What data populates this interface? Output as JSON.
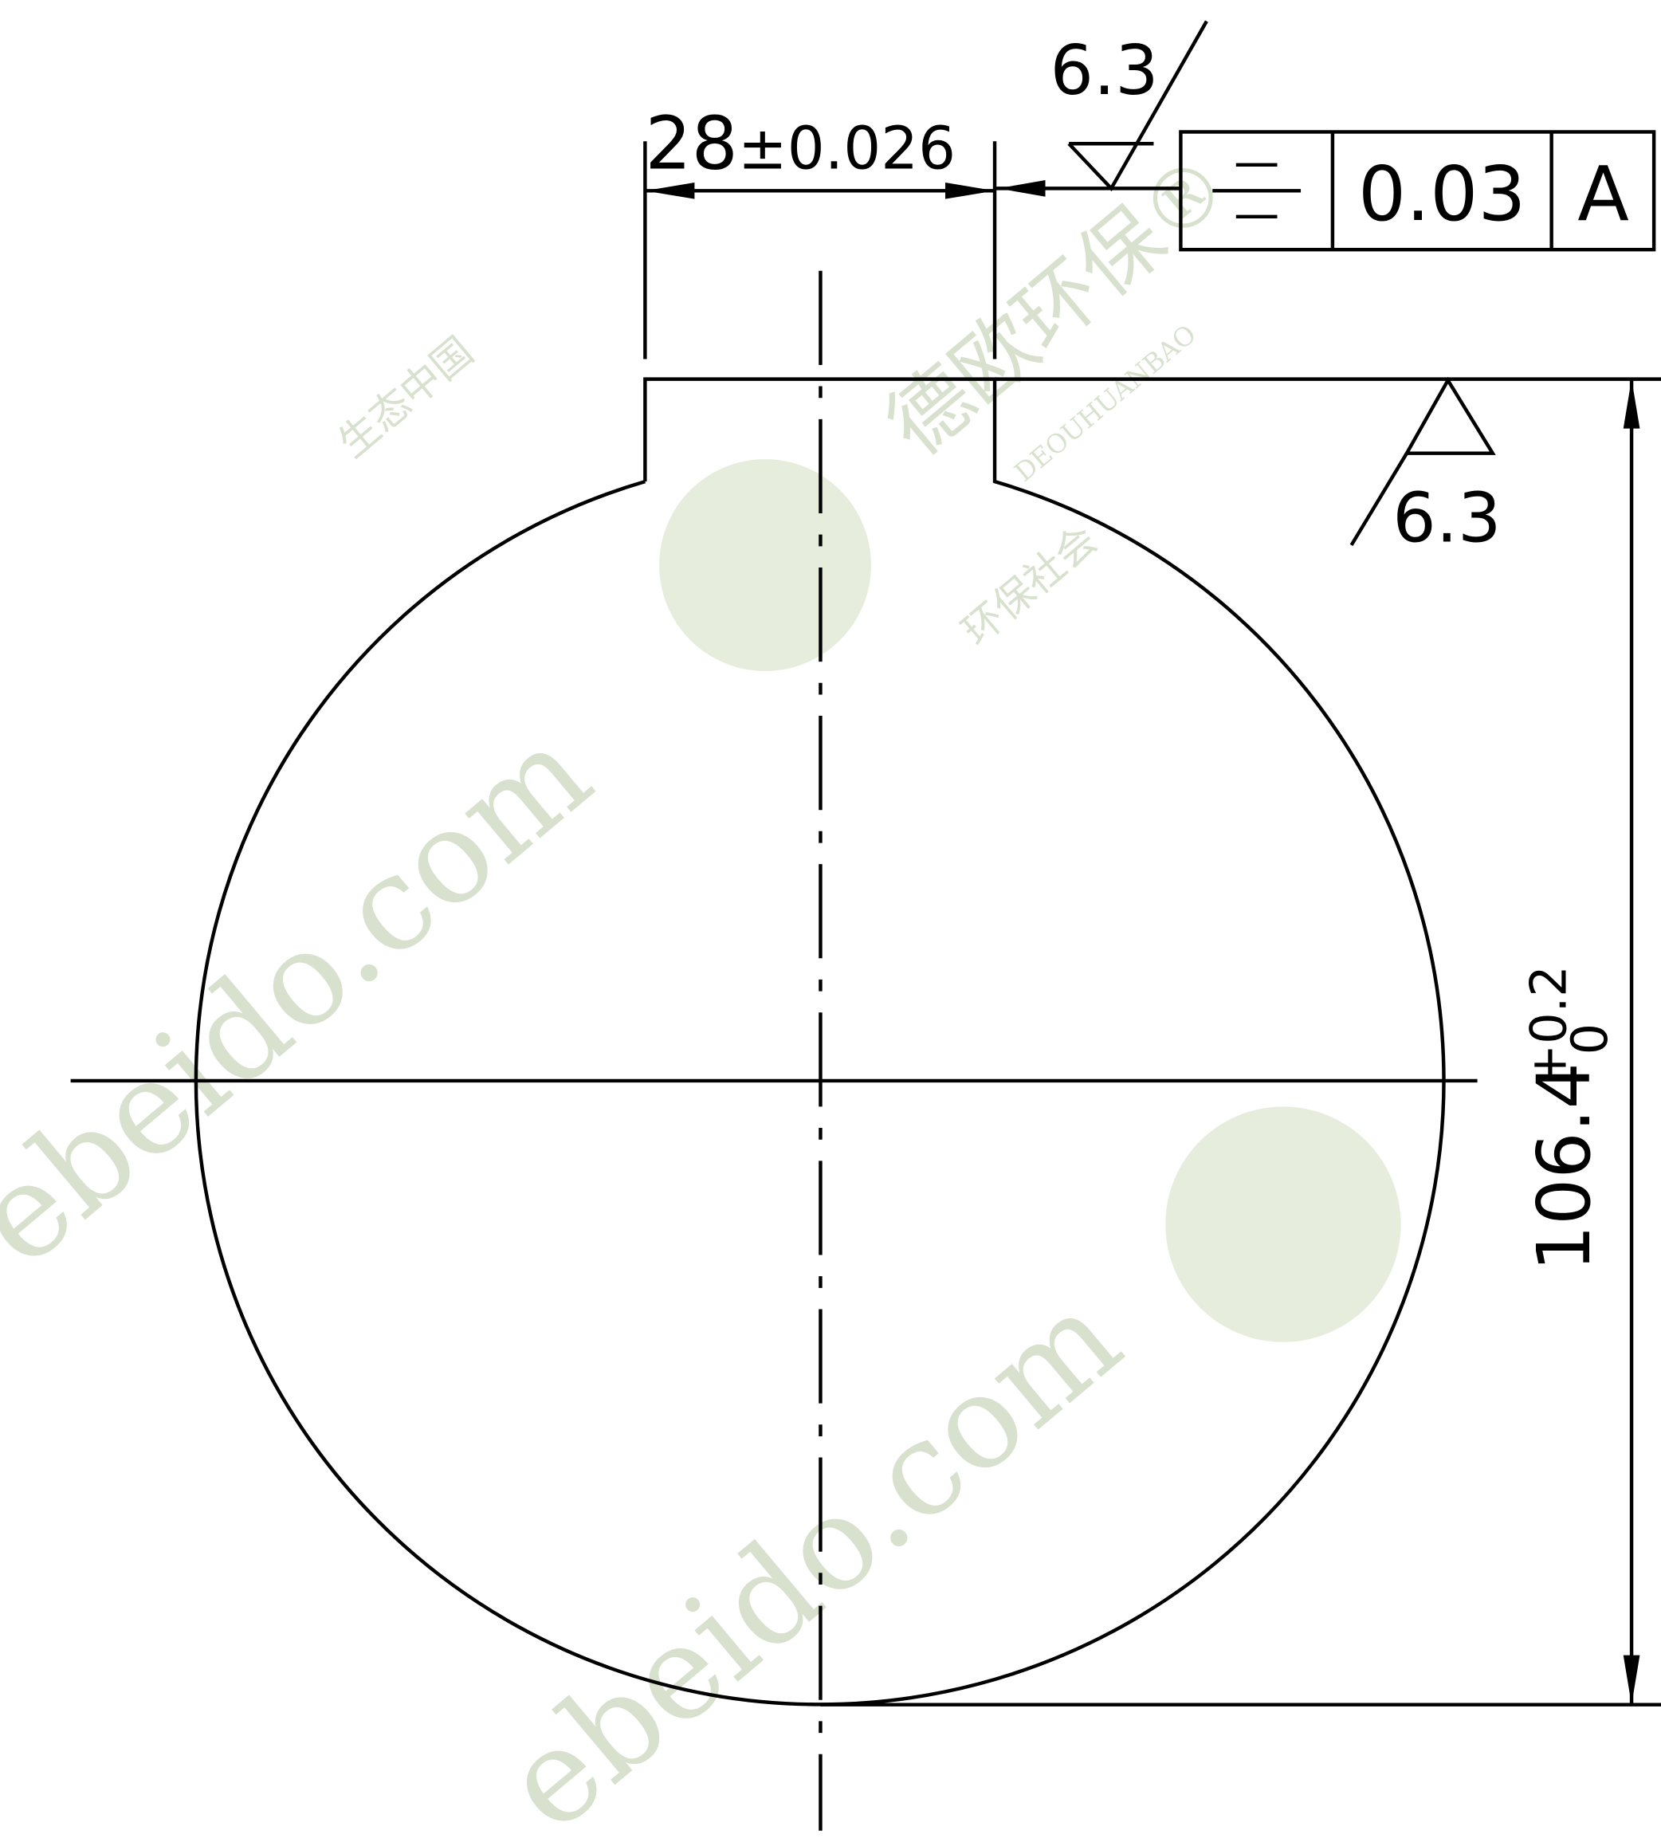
{
  "drawing": {
    "width_dimension": {
      "nominal": "28",
      "tolerance": "±0.026"
    },
    "top_roughness": "6.3",
    "tolerance_frame": {
      "value": "0.03",
      "datum": "A"
    },
    "side_roughness": "6.3",
    "height_dimension": {
      "nominal": "106.4",
      "upper": "+0.2",
      "lower": "0"
    }
  },
  "watermark": {
    "brand": "德欧环保®",
    "pinyin": "DEOUHUANBAO",
    "slogan1": "生态中国",
    "slogan2": "环保社会",
    "site": "ebeido.com"
  }
}
